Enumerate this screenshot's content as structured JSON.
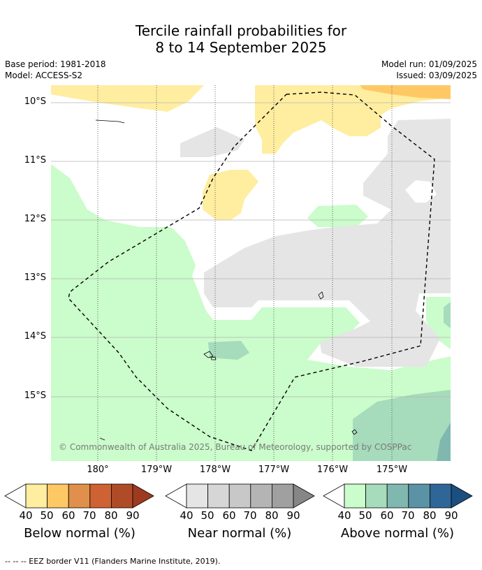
{
  "header": {
    "title_line1": "Tercile rainfall probabilities for",
    "title_line2": "8 to 14 September 2025",
    "base_period": "Base period: 1981-2018",
    "model": "Model: ACCESS-S2",
    "model_run": "Model run: 01/09/2025",
    "issued": "Issued: 03/09/2025"
  },
  "map": {
    "lat_labels": [
      "10°S",
      "11°S",
      "12°S",
      "13°S",
      "14°S",
      "15°S"
    ],
    "lon_labels": [
      "180°",
      "179°W",
      "178°W",
      "177°W",
      "176°W",
      "175°W"
    ],
    "copyright": "© Commonwealth of Australia 2025, Bureau of Meteorology, supported by COSPPac"
  },
  "colorbars": {
    "ticks": [
      "40",
      "50",
      "60",
      "70",
      "80",
      "90"
    ],
    "below": {
      "label": "Below normal (%)",
      "colors": [
        "#ffeda0",
        "#fec965",
        "#e0904a",
        "#cf6233",
        "#b04b28",
        "#9e3a20"
      ]
    },
    "near": {
      "label": "Near normal (%)",
      "colors": [
        "#e5e5e5",
        "#d6d6d6",
        "#c8c8c8",
        "#b4b4b4",
        "#a0a0a0",
        "#868686"
      ]
    },
    "above": {
      "label": "Above normal (%)",
      "colors": [
        "#cbfccb",
        "#a6dbbb",
        "#80b8b0",
        "#5b93a6",
        "#2f6698",
        "#1b4f80"
      ]
    }
  },
  "footnote": "--  --  -- EEZ border V11 (Flanders Marine Institute, 2019)."
}
